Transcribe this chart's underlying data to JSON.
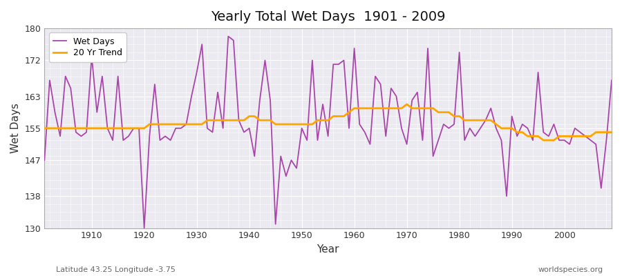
{
  "title": "Yearly Total Wet Days  1901 - 2009",
  "xlabel": "Year",
  "ylabel": "Wet Days",
  "footer_left": "Latitude 43.25 Longitude -3.75",
  "footer_right": "worldspecies.org",
  "ylim": [
    130,
    180
  ],
  "yticks": [
    130,
    138,
    147,
    155,
    163,
    172,
    180
  ],
  "line_color": "#AA44AA",
  "trend_color": "#FFA500",
  "plot_bg_color": "#EAEAF0",
  "fig_bg_color": "#FFFFFF",
  "years": [
    1901,
    1902,
    1903,
    1904,
    1905,
    1906,
    1907,
    1908,
    1909,
    1910,
    1911,
    1912,
    1913,
    1914,
    1915,
    1916,
    1917,
    1918,
    1919,
    1920,
    1921,
    1922,
    1923,
    1924,
    1925,
    1926,
    1927,
    1928,
    1929,
    1930,
    1931,
    1932,
    1933,
    1934,
    1935,
    1936,
    1937,
    1938,
    1939,
    1940,
    1941,
    1942,
    1943,
    1944,
    1945,
    1946,
    1947,
    1948,
    1949,
    1950,
    1951,
    1952,
    1953,
    1954,
    1955,
    1956,
    1957,
    1958,
    1959,
    1960,
    1961,
    1962,
    1963,
    1964,
    1965,
    1966,
    1967,
    1968,
    1969,
    1970,
    1971,
    1972,
    1973,
    1974,
    1975,
    1976,
    1977,
    1978,
    1979,
    1980,
    1981,
    1982,
    1983,
    1984,
    1985,
    1986,
    1987,
    1988,
    1989,
    1990,
    1991,
    1992,
    1993,
    1994,
    1995,
    1996,
    1997,
    1998,
    1999,
    2000,
    2001,
    2002,
    2003,
    2004,
    2005,
    2006,
    2007,
    2008,
    2009
  ],
  "wet_days": [
    147,
    167,
    159,
    153,
    168,
    165,
    154,
    153,
    154,
    173,
    159,
    168,
    155,
    152,
    168,
    152,
    153,
    155,
    155,
    130,
    153,
    166,
    152,
    153,
    152,
    155,
    155,
    156,
    163,
    169,
    176,
    155,
    154,
    164,
    155,
    178,
    177,
    157,
    154,
    155,
    148,
    162,
    172,
    162,
    131,
    148,
    143,
    147,
    145,
    155,
    152,
    172,
    152,
    161,
    153,
    171,
    171,
    172,
    155,
    175,
    156,
    154,
    151,
    168,
    166,
    153,
    165,
    163,
    155,
    151,
    162,
    164,
    152,
    175,
    148,
    152,
    156,
    155,
    156,
    174,
    152,
    155,
    153,
    155,
    157,
    160,
    155,
    152,
    138,
    158,
    153,
    156,
    155,
    152,
    169,
    154,
    153,
    156,
    152,
    152,
    151,
    155,
    154,
    153,
    152,
    151,
    140,
    152,
    167
  ],
  "trend": [
    155,
    155,
    155,
    155,
    155,
    155,
    155,
    155,
    155,
    155,
    155,
    155,
    155,
    155,
    155,
    155,
    155,
    155,
    155,
    155,
    156,
    156,
    156,
    156,
    156,
    156,
    156,
    156,
    156,
    156,
    156,
    157,
    157,
    157,
    157,
    157,
    157,
    157,
    157,
    158,
    158,
    157,
    157,
    157,
    156,
    156,
    156,
    156,
    156,
    156,
    156,
    156,
    157,
    157,
    157,
    158,
    158,
    158,
    159,
    160,
    160,
    160,
    160,
    160,
    160,
    160,
    160,
    160,
    160,
    161,
    160,
    160,
    160,
    160,
    160,
    159,
    159,
    159,
    158,
    158,
    157,
    157,
    157,
    157,
    157,
    157,
    156,
    155,
    155,
    155,
    154,
    154,
    153,
    153,
    153,
    152,
    152,
    152,
    153,
    153,
    153,
    153,
    153,
    153,
    153,
    154,
    154,
    154,
    154
  ]
}
